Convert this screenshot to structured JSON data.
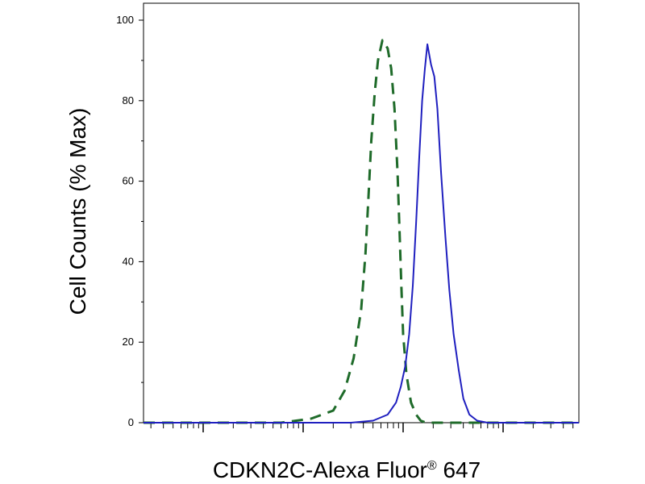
{
  "chart_data": {
    "type": "line",
    "xlabel": "CDKN2C-Alexa Fluor",
    "xlabel_superscript": "®",
    "xlabel_suffix": " 647",
    "ylabel": "Cell Counts (% Max)",
    "x_scale": "log",
    "xlim": [
      1,
      10000000
    ],
    "ylim": [
      0,
      105
    ],
    "yticks": [
      0,
      20,
      40,
      60,
      80,
      100
    ],
    "ytick_labels": [
      "0",
      "20",
      "40",
      "60",
      "80",
      "100"
    ],
    "grid": false,
    "series": [
      {
        "color": "#1a3f2a",
        "line_color": "#1f6b2a",
        "dash": "dashed",
        "x": [
          1,
          10,
          60,
          120,
          200,
          260,
          320,
          380,
          420,
          450,
          480,
          520,
          560,
          620,
          700,
          760,
          820,
          880,
          920,
          960,
          1000,
          1080,
          1200,
          1350,
          1500,
          1700,
          2000,
          2500,
          3500,
          5000,
          10000000
        ],
        "y": [
          0,
          0,
          0,
          1,
          3,
          8,
          16,
          28,
          42,
          56,
          70,
          82,
          90,
          95,
          93,
          88,
          78,
          62,
          48,
          34,
          22,
          12,
          5,
          2,
          0.5,
          0,
          0,
          0,
          0,
          0,
          0
        ]
      },
      {
        "color": "#1f1fbf",
        "dash": "solid",
        "x": [
          1,
          100,
          300,
          500,
          700,
          850,
          950,
          1050,
          1150,
          1250,
          1350,
          1450,
          1550,
          1650,
          1750,
          1900,
          2050,
          2200,
          2400,
          2650,
          2900,
          3200,
          3600,
          4000,
          4600,
          5500,
          7000,
          10000,
          100000,
          10000000
        ],
        "y": [
          0,
          0,
          0,
          0.5,
          2,
          5,
          9,
          14,
          22,
          34,
          50,
          66,
          80,
          88,
          94,
          89,
          86,
          78,
          62,
          46,
          33,
          22,
          13,
          6,
          2,
          0.5,
          0,
          0,
          0,
          0
        ]
      }
    ]
  }
}
